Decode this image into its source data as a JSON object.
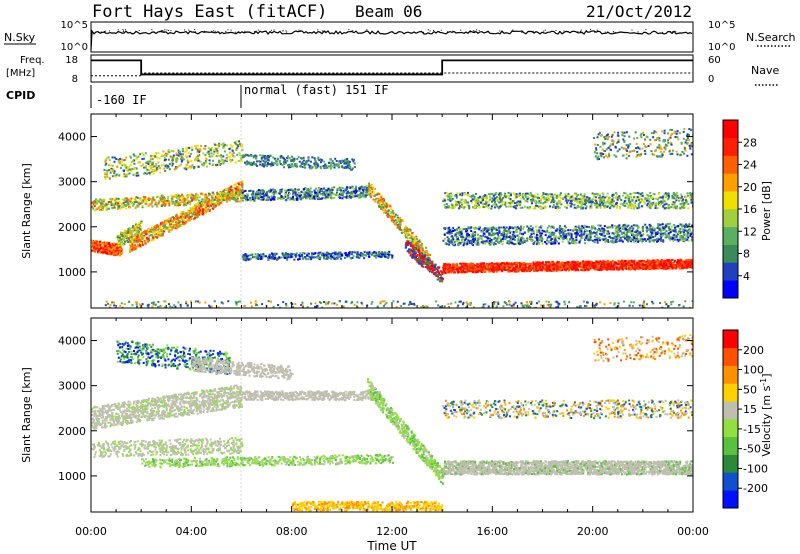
{
  "header": {
    "station": "Fort Hays East (fitACF)",
    "beam": "Beam 06",
    "date": "21/Oct/2012"
  },
  "colors": {
    "power": [
      "#0000ff",
      "#2040c0",
      "#3a8a5a",
      "#58b060",
      "#a0d040",
      "#f0e000",
      "#ffa000",
      "#ff6000",
      "#ff2000",
      "#ff0000"
    ],
    "velocity": [
      "#0010ff",
      "#1050d0",
      "#2a8a3a",
      "#5ac040",
      "#90e040",
      "#bfbfb0",
      "#ffd000",
      "#ff9000",
      "#ff5000",
      "#ff0000"
    ]
  },
  "chart_data": [
    {
      "type": "line",
      "name": "status-nsky-nsearch",
      "left_label": "N.Sky",
      "right_label": "N.Search",
      "left_ticks": [
        "10^5",
        "10^0"
      ],
      "right_ticks": [
        "10^5",
        "10^0"
      ]
    },
    {
      "type": "line",
      "name": "status-freq-nave",
      "left_label": "Freq.",
      "left_unit": "[MHz]",
      "right_label": "Nave",
      "left_ticks": [
        "18",
        "8"
      ],
      "right_ticks": [
        "60",
        "0"
      ],
      "freq_steps": [
        {
          "from": 0.0,
          "to": 2.0,
          "value": 16
        },
        {
          "from": 2.0,
          "to": 14.0,
          "value": 10.8
        },
        {
          "from": 14.0,
          "to": 24.0,
          "value": 16
        }
      ],
      "nave_steps": [
        {
          "from": 0.0,
          "to": 2.0,
          "value": 14
        },
        {
          "from": 2.0,
          "to": 24.0,
          "value": 20
        }
      ]
    },
    {
      "type": "table",
      "name": "cpid",
      "label": "CPID",
      "entries": [
        {
          "start": 0.0,
          "text": "-160 IF"
        },
        {
          "start": 6.0,
          "text": "normal (fast) 151 IF"
        }
      ]
    },
    {
      "type": "heatmap",
      "name": "power-panel",
      "ylabel": "Slant Range [km]",
      "yticks": [
        1000,
        2000,
        3000,
        4000
      ],
      "ylim": [
        200,
        4500
      ],
      "colorbar_label": "Power [dB]",
      "colorbar_ticks": [
        "28",
        "24",
        "20",
        "16",
        "12",
        "8",
        "4"
      ]
    },
    {
      "type": "heatmap",
      "name": "velocity-panel",
      "ylabel": "Slant Range [km]",
      "yticks": [
        1000,
        2000,
        3000,
        4000
      ],
      "ylim": [
        200,
        4500
      ],
      "xlabel": "Time UT",
      "xticks": [
        "00:00",
        "04:00",
        "08:00",
        "12:00",
        "16:00",
        "20:00",
        "00:00"
      ],
      "colorbar_label": "Velocity [m s",
      "colorbar_label_sup": "-1",
      "colorbar_label_close": "]",
      "colorbar_ticks": [
        "200",
        "100",
        "50",
        "15",
        "-15",
        "-50",
        "-100",
        "-200"
      ]
    }
  ]
}
